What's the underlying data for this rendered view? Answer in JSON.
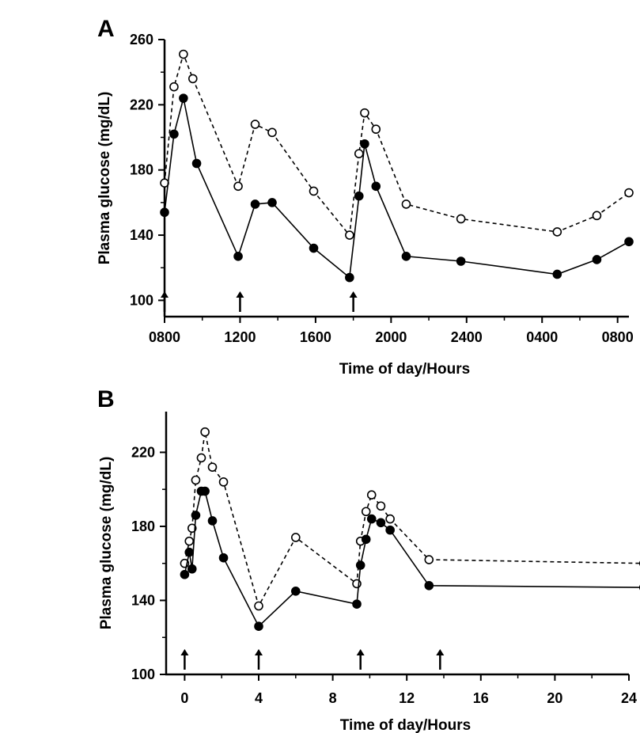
{
  "chart_data": [
    {
      "type": "line",
      "panel": "A",
      "xlabel": "Time of day/Hours",
      "ylabel": "Plasma glucose (mg/dL)",
      "ylim": [
        90,
        260
      ],
      "yticks": [
        100,
        140,
        180,
        220,
        260
      ],
      "xlim": [
        0,
        24.6
      ],
      "xticks": [
        {
          "value": 0,
          "label": "0800"
        },
        {
          "value": 4,
          "label": "1200"
        },
        {
          "value": 8,
          "label": "1600"
        },
        {
          "value": 12,
          "label": "2000"
        },
        {
          "value": 16,
          "label": "2400"
        },
        {
          "value": 20,
          "label": "0400"
        },
        {
          "value": 24,
          "label": "0800"
        }
      ],
      "grid": false,
      "arrows_at_x": [
        0,
        4,
        10
      ],
      "series": [
        {
          "style": "dashed-open-circles",
          "color": "#000000",
          "x": [
            0,
            0.5,
            1,
            1.5,
            3.9,
            4.8,
            5.7,
            7.9,
            9.8,
            10.3,
            10.6,
            11.2,
            12.8,
            15.7,
            20.8,
            22.9,
            24.6
          ],
          "y": [
            172,
            231,
            251,
            236,
            170,
            208,
            203,
            167,
            140,
            190,
            215,
            205,
            159,
            150,
            142,
            152,
            166
          ]
        },
        {
          "style": "solid-filled-circles",
          "color": "#000000",
          "x": [
            0,
            0.5,
            1,
            1.7,
            3.9,
            4.8,
            5.7,
            7.9,
            9.8,
            10.3,
            10.6,
            11.2,
            12.8,
            15.7,
            20.8,
            22.9,
            24.6
          ],
          "y": [
            154,
            202,
            224,
            184,
            127,
            159,
            160,
            132,
            114,
            164,
            196,
            170,
            127,
            124,
            116,
            125,
            136
          ]
        }
      ]
    },
    {
      "type": "line",
      "panel": "B",
      "xlabel": "Time of day/Hours",
      "ylabel": "Plasma glucose (mg/dL)",
      "ylim": [
        100,
        242
      ],
      "yticks": [
        100,
        140,
        180,
        220
      ],
      "xlim": [
        -1,
        24
      ],
      "xticks": [
        {
          "value": 0,
          "label": "0"
        },
        {
          "value": 4,
          "label": "4"
        },
        {
          "value": 8,
          "label": "8"
        },
        {
          "value": 12,
          "label": "12"
        },
        {
          "value": 16,
          "label": "16"
        },
        {
          "value": 20,
          "label": "20"
        },
        {
          "value": 24,
          "label": "24"
        }
      ],
      "grid": false,
      "arrows_at_x": [
        0,
        4,
        9.5,
        13.8
      ],
      "series": [
        {
          "style": "dashed-open-circles",
          "color": "#000000",
          "x": [
            0,
            0.25,
            0.4,
            0.6,
            0.9,
            1.1,
            1.5,
            2.1,
            4,
            6,
            9.3,
            9.5,
            9.8,
            10.1,
            10.6,
            11.1,
            13.2,
            24.8
          ],
          "y": [
            160,
            172,
            179,
            205,
            217,
            231,
            212,
            204,
            137,
            174,
            149,
            172,
            188,
            197,
            191,
            184,
            162,
            160
          ]
        },
        {
          "style": "solid-filled-circles",
          "color": "#000000",
          "x": [
            0,
            0.25,
            0.4,
            0.6,
            0.9,
            1.1,
            1.5,
            2.1,
            4,
            6,
            9.3,
            9.5,
            9.8,
            10.1,
            10.6,
            11.1,
            13.2,
            24.8
          ],
          "y": [
            154,
            166,
            157,
            186,
            199,
            199,
            183,
            163,
            126,
            145,
            138,
            159,
            173,
            184,
            182,
            178,
            148,
            147
          ]
        }
      ]
    }
  ]
}
